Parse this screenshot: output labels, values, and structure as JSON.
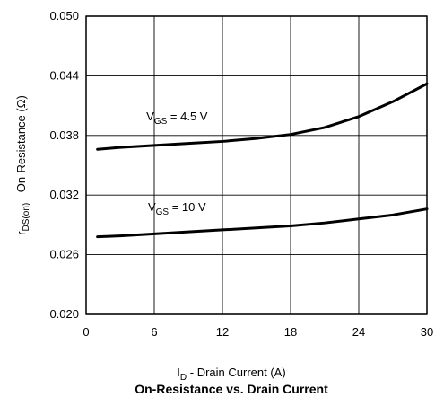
{
  "chart_data": {
    "type": "line",
    "title": "On-Resistance vs. Drain Current",
    "xlabel": {
      "main": "I",
      "sub": "D",
      "tail": " - Drain Current (A)"
    },
    "ylabel": {
      "main": "r",
      "sub": "DS(on)",
      "tail": " - On-Resistance (Ω)"
    },
    "xlim": [
      0,
      30
    ],
    "ylim": [
      0.02,
      0.05
    ],
    "xticks": [
      "0",
      "6",
      "12",
      "18",
      "24",
      "30"
    ],
    "yticks": [
      "0.020",
      "0.026",
      "0.032",
      "0.038",
      "0.044",
      "0.050"
    ],
    "grid": true,
    "series": [
      {
        "name": {
          "main": "V",
          "sub": "GS",
          "tail": " = 4.5 V"
        },
        "x": [
          1,
          3,
          6,
          9,
          12,
          15,
          18,
          21,
          24,
          27,
          30
        ],
        "y": [
          0.0366,
          0.0368,
          0.037,
          0.0372,
          0.0374,
          0.0377,
          0.0381,
          0.0388,
          0.0399,
          0.0414,
          0.0432
        ]
      },
      {
        "name": {
          "main": "V",
          "sub": "GS",
          "tail": " = 10 V"
        },
        "x": [
          1,
          3,
          6,
          9,
          12,
          15,
          18,
          21,
          24,
          27,
          30
        ],
        "y": [
          0.0278,
          0.0279,
          0.0281,
          0.0283,
          0.0285,
          0.0287,
          0.0289,
          0.0292,
          0.0296,
          0.03,
          0.0306
        ]
      }
    ]
  }
}
